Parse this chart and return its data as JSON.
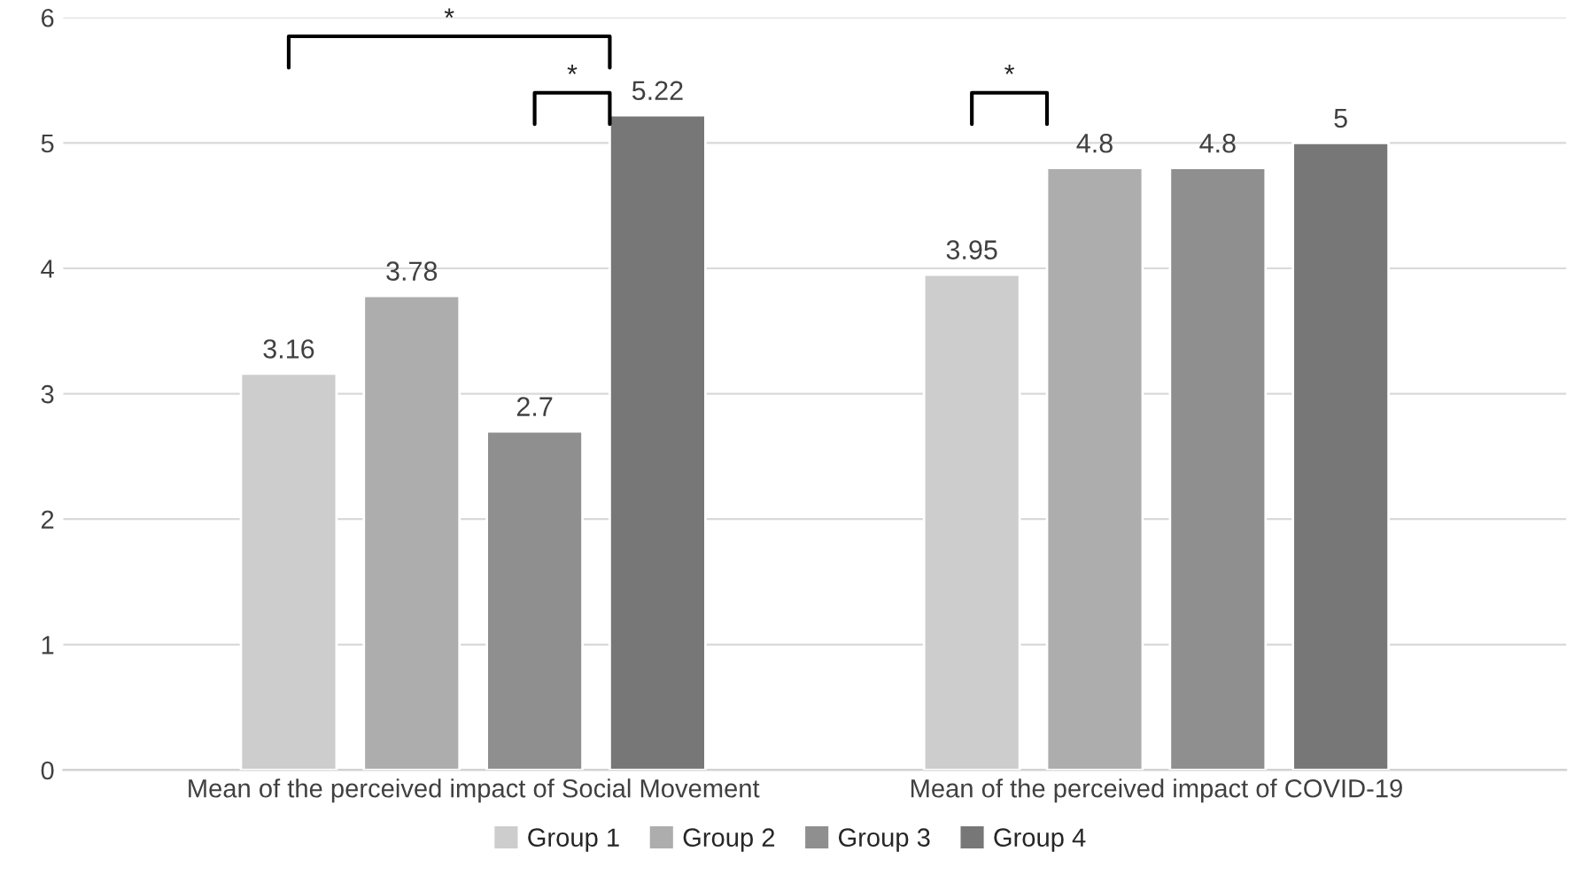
{
  "chart_data": {
    "type": "bar",
    "categories": [
      "Mean of the perceived impact of Social Movement",
      "Mean of the perceived impact of COVID-19"
    ],
    "series": [
      {
        "name": "Group 1",
        "color": "#cdcdcd",
        "values": [
          3.16,
          3.95
        ]
      },
      {
        "name": "Group 2",
        "color": "#adadad",
        "values": [
          3.78,
          4.8
        ]
      },
      {
        "name": "Group 3",
        "color": "#8f8f8f",
        "values": [
          2.7,
          4.8
        ]
      },
      {
        "name": "Group 4",
        "color": "#777777",
        "values": [
          5.22,
          5
        ]
      }
    ],
    "ylim": [
      0,
      6
    ],
    "yticks": [
      0,
      1,
      2,
      3,
      4,
      5,
      6
    ],
    "grid": "y",
    "legend": "bottom",
    "data_labels": true,
    "annotations": [
      "*",
      "*",
      "*"
    ]
  }
}
